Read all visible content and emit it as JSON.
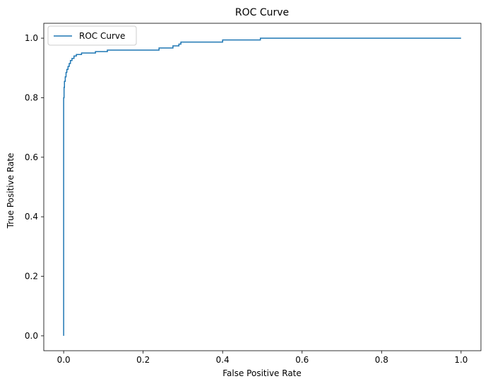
{
  "chart_data": {
    "type": "line",
    "title": "ROC Curve",
    "xlabel": "False Positive Rate",
    "ylabel": "True Positive Rate",
    "xlim": [
      -0.05,
      1.05
    ],
    "ylim": [
      -0.05,
      1.05
    ],
    "xticks": [
      0.0,
      0.2,
      0.4,
      0.6,
      0.8,
      1.0
    ],
    "xtick_labels": [
      "0.0",
      "0.2",
      "0.4",
      "0.6",
      "0.8",
      "1.0"
    ],
    "yticks": [
      0.0,
      0.2,
      0.4,
      0.6,
      0.8,
      1.0
    ],
    "ytick_labels": [
      "0.0",
      "0.2",
      "0.4",
      "0.6",
      "0.8",
      "1.0"
    ],
    "grid": false,
    "legend": {
      "position": "upper-left",
      "entries": [
        "ROC Curve"
      ]
    },
    "series": [
      {
        "name": "ROC Curve",
        "color": "#1f77b4",
        "x": [
          0.0,
          0.0,
          0.001,
          0.001,
          0.002,
          0.002,
          0.004,
          0.004,
          0.006,
          0.006,
          0.008,
          0.008,
          0.011,
          0.011,
          0.014,
          0.014,
          0.017,
          0.017,
          0.021,
          0.021,
          0.026,
          0.026,
          0.032,
          0.032,
          0.045,
          0.045,
          0.08,
          0.08,
          0.11,
          0.11,
          0.24,
          0.24,
          0.275,
          0.275,
          0.29,
          0.29,
          0.295,
          0.295,
          0.4,
          0.4,
          0.495,
          0.495,
          1.0
        ],
        "y": [
          0.0,
          0.8,
          0.8,
          0.835,
          0.835,
          0.855,
          0.855,
          0.87,
          0.87,
          0.885,
          0.885,
          0.895,
          0.895,
          0.905,
          0.905,
          0.915,
          0.915,
          0.925,
          0.925,
          0.932,
          0.932,
          0.94,
          0.94,
          0.945,
          0.945,
          0.95,
          0.95,
          0.955,
          0.955,
          0.96,
          0.96,
          0.967,
          0.967,
          0.974,
          0.974,
          0.98,
          0.98,
          0.987,
          0.987,
          0.994,
          0.994,
          1.0,
          1.0
        ]
      }
    ]
  }
}
